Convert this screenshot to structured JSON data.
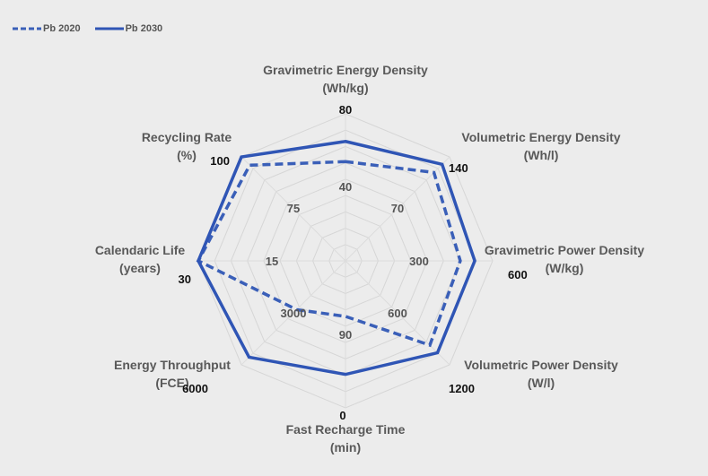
{
  "chart_data": {
    "type": "radar",
    "title": "",
    "legend_position": "top-left",
    "axes": [
      {
        "label": [
          "Gravimetric Energy Density",
          "(Wh/kg)"
        ],
        "mid_tick": "40",
        "max_tick": "80",
        "min": 0,
        "max": 80
      },
      {
        "label": [
          "Volumetric Energy Density",
          "(Wh/l)"
        ],
        "mid_tick": "70",
        "max_tick": "140",
        "min": 0,
        "max": 140
      },
      {
        "label": [
          "Gravimetric Power Density",
          "(W/kg)"
        ],
        "mid_tick": "300",
        "max_tick": "600",
        "min": 0,
        "max": 600
      },
      {
        "label": [
          "Volumetric Power Density",
          "(W/l)"
        ],
        "mid_tick": "600",
        "max_tick": "1200",
        "min": 0,
        "max": 1200
      },
      {
        "label": [
          "Fast Recharge Time",
          "(min)"
        ],
        "mid_tick": "90",
        "max_tick": "0",
        "min": 180,
        "max": 0
      },
      {
        "label": [
          "Energy Throughput",
          "(FCE)"
        ],
        "mid_tick": "3000",
        "max_tick": "6000",
        "min": 0,
        "max": 6000
      },
      {
        "label": [
          "Calendaric Life",
          "(years)"
        ],
        "mid_tick": "15",
        "max_tick": "30",
        "min": 0,
        "max": 30
      },
      {
        "label": [
          "Recycling Rate",
          "(%)"
        ],
        "mid_tick": "75",
        "max_tick": "100",
        "min": 50,
        "max": 100
      }
    ],
    "series": [
      {
        "name": "Pb 2020",
        "style": "dashed",
        "color": "#3a5fb8",
        "values": [
          54,
          119,
          468,
          973,
          112,
          2817,
          30,
          96
        ]
      },
      {
        "name": "Pb 2030",
        "style": "solid",
        "color": "#2f55b5",
        "values": [
          65,
          130,
          527,
          1061,
          41,
          5560,
          30,
          100
        ]
      }
    ],
    "grid": true
  }
}
